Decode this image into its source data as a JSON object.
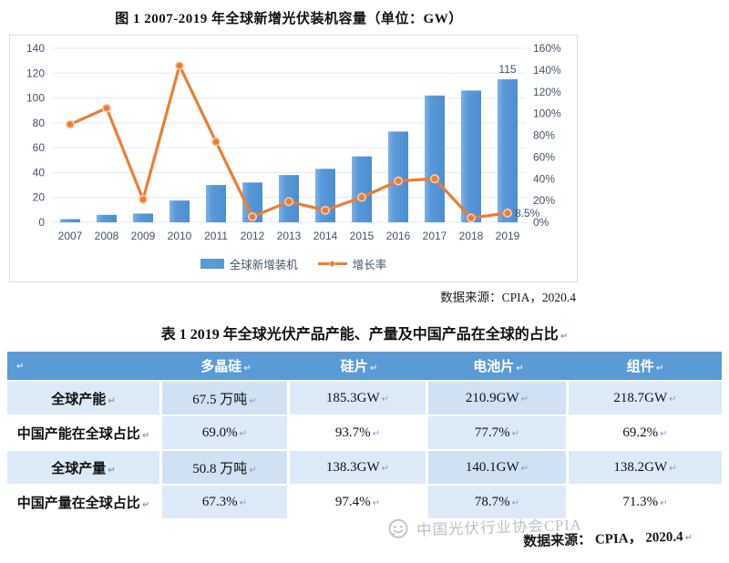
{
  "figure": {
    "title": "图 1 2007-2019 年全球新增光伏装机容量（单位：GW）",
    "source": "数据来源：CPIA，2020.4"
  },
  "chart_data": {
    "type": "bar",
    "combo": "bar+line",
    "title": "图 1 2007-2019 年全球新增光伏装机容量（单位：GW）",
    "categories": [
      "2007",
      "2008",
      "2009",
      "2010",
      "2011",
      "2012",
      "2013",
      "2014",
      "2015",
      "2016",
      "2017",
      "2018",
      "2019"
    ],
    "series": [
      {
        "name": "全球新增装机",
        "type": "bar",
        "axis": "left",
        "values": [
          2.5,
          6,
          7,
          17.5,
          30,
          32,
          38,
          43,
          53,
          73,
          102,
          106,
          115
        ]
      },
      {
        "name": "增长率",
        "type": "line",
        "axis": "right",
        "unit": "%",
        "values": [
          90,
          105,
          21,
          144,
          74,
          5,
          19,
          11,
          23,
          38,
          40,
          4,
          8.5
        ]
      }
    ],
    "left_axis": {
      "min": 0,
      "max": 140,
      "step": 20,
      "suffix": ""
    },
    "right_axis": {
      "min": 0,
      "max": 160,
      "step": 20,
      "suffix": "%"
    },
    "data_labels": [
      {
        "series": 0,
        "index": 12,
        "text": "115"
      },
      {
        "series": 1,
        "index": 12,
        "text": "8.5%"
      }
    ],
    "grid": true,
    "legend_position": "bottom",
    "colors": {
      "bar": "#5B9BD5",
      "line": "#ED7D31",
      "axis_text": "#44546a",
      "gridline": "#e4e9f1"
    }
  },
  "table": {
    "title": "表 1 2019 年全球光伏产品产能、产量及中国产品在全球的占比",
    "columns": [
      "",
      "多晶硅",
      "硅片",
      "电池片",
      "组件"
    ],
    "rows": [
      {
        "label": "全球产能",
        "values": [
          "67.5 万吨",
          "185.3GW",
          "210.9GW",
          "218.7GW"
        ]
      },
      {
        "label": "中国产能在全球占比",
        "values": [
          "69.0%",
          "93.7%",
          "77.7%",
          "69.2%"
        ]
      },
      {
        "label": "全球产量",
        "values": [
          "50.8 万吨",
          "138.3GW",
          "140.1GW",
          "138.2GW"
        ]
      },
      {
        "label": "中国产量在全球占比",
        "values": [
          "67.3%",
          "97.4%",
          "78.7%",
          "71.3%"
        ]
      }
    ],
    "paragraph_mark": "↵",
    "source": "数据来源： CPIA， 2020.4"
  },
  "watermark": {
    "icon": "wechat-logo",
    "text": "中国光伏行业协会CPIA"
  }
}
